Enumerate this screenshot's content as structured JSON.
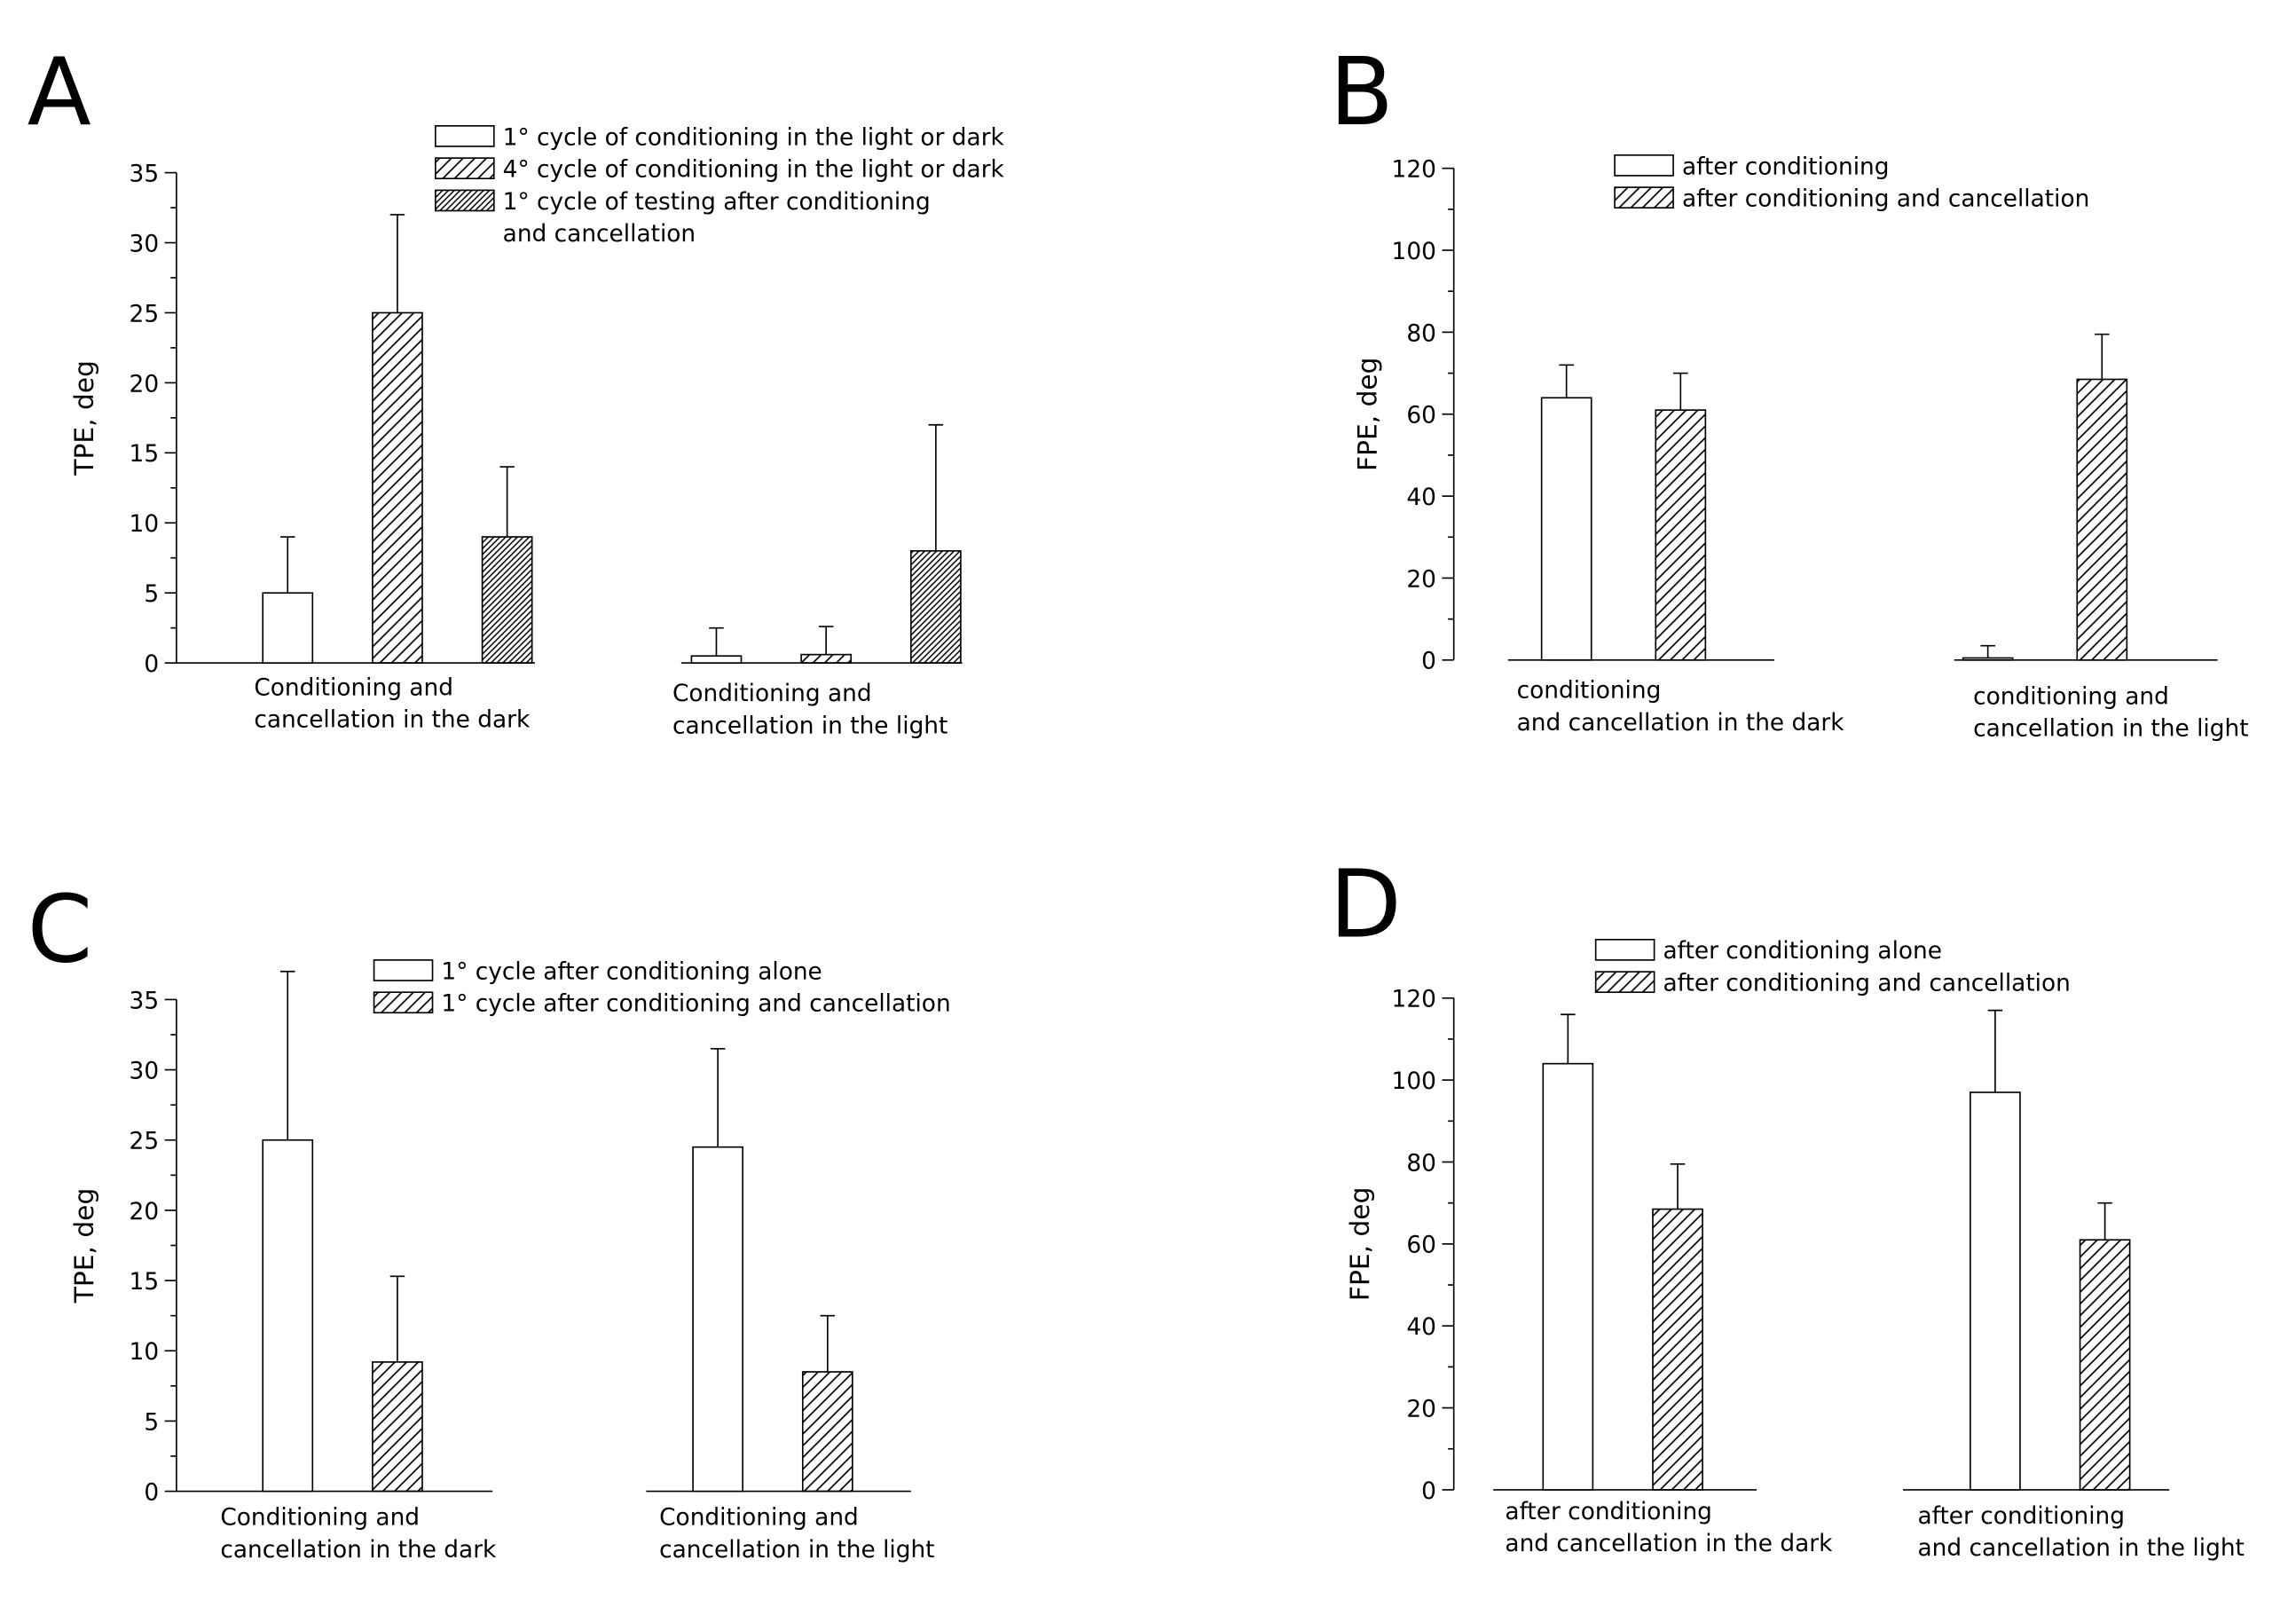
{
  "chart_data": [
    {
      "type": "bar",
      "label": "A",
      "ylabel": "TPE, deg",
      "ylim": [
        0,
        35
      ],
      "yticks": [
        0,
        5,
        10,
        15,
        20,
        25,
        30,
        35
      ],
      "categories": [
        [
          "Conditioning and",
          "cancellation in the dark"
        ],
        [
          "Conditioning and",
          "cancellation in the light"
        ]
      ],
      "series": [
        {
          "name": [
            "1° cycle of conditioning in the light or dark"
          ],
          "color": "#000000",
          "hatch": "none",
          "values": [
            5,
            0.5
          ],
          "errors": [
            4,
            2
          ]
        },
        {
          "name": [
            "4° cycle of conditioning in the light or dark"
          ],
          "color": "#000000",
          "hatch": "sparse",
          "values": [
            25,
            0.6
          ],
          "errors": [
            7,
            2
          ]
        },
        {
          "name": [
            "1° cycle of testing after conditioning",
            "and cancellation"
          ],
          "color": "#000000",
          "hatch": "dense",
          "values": [
            9,
            8
          ],
          "errors": [
            5,
            9
          ]
        }
      ]
    },
    {
      "type": "bar",
      "label": "B",
      "ylabel": "FPE, deg",
      "ylim": [
        0,
        120
      ],
      "yticks": [
        0,
        20,
        40,
        60,
        80,
        100,
        120
      ],
      "categories": [
        [
          "conditioning",
          "and cancellation in the dark"
        ],
        [
          "conditioning and",
          "cancellation in the light"
        ]
      ],
      "series": [
        {
          "name": [
            "after conditioning"
          ],
          "color": "#000000",
          "hatch": "none",
          "values": [
            64,
            0.5
          ],
          "errors": [
            8,
            3
          ]
        },
        {
          "name": [
            "after conditioning and  cancellation"
          ],
          "color": "#000000",
          "hatch": "sparse",
          "values": [
            61,
            68.5
          ],
          "errors": [
            9,
            11
          ]
        }
      ]
    },
    {
      "type": "bar",
      "label": "C",
      "ylabel": "TPE, deg",
      "ylim": [
        0,
        35
      ],
      "yticks": [
        0,
        5,
        10,
        15,
        20,
        25,
        30,
        35
      ],
      "categories": [
        [
          "Conditioning and",
          "cancellation in the dark"
        ],
        [
          "Conditioning and",
          "cancellation in the light"
        ]
      ],
      "series": [
        {
          "name": [
            "1° cycle after conditioning alone"
          ],
          "color": "#000000",
          "hatch": "none",
          "values": [
            25,
            24.5
          ],
          "errors": [
            12,
            7
          ]
        },
        {
          "name": [
            "1° cycle after conditioning and cancellation"
          ],
          "color": "#000000",
          "hatch": "sparse",
          "values": [
            9.2,
            8.5
          ],
          "errors": [
            6.1,
            4
          ]
        }
      ]
    },
    {
      "type": "bar",
      "label": "D",
      "ylabel": "FPE, deg",
      "ylim": [
        0,
        120
      ],
      "yticks": [
        0,
        20,
        40,
        60,
        80,
        100,
        120
      ],
      "categories": [
        [
          "after conditioning",
          "and cancellation in the dark"
        ],
        [
          "after conditioning",
          "and cancellation in the light"
        ]
      ],
      "series": [
        {
          "name": [
            "after conditioning alone"
          ],
          "color": "#000000",
          "hatch": "none",
          "values": [
            104,
            97
          ],
          "errors": [
            12,
            20
          ]
        },
        {
          "name": [
            "after conditioning and cancellation"
          ],
          "color": "#000000",
          "hatch": "sparse",
          "values": [
            68.5,
            61
          ],
          "errors": [
            11,
            9
          ]
        }
      ]
    }
  ]
}
